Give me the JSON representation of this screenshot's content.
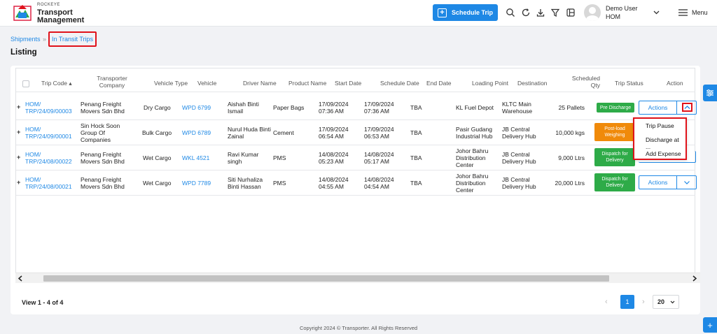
{
  "app": {
    "brand_small": "ROCKEYE",
    "brand_line1": "Transport",
    "brand_line2": "Management"
  },
  "header": {
    "schedule_trip": "Schedule Trip",
    "user_name": "Demo User",
    "user_role": "HOM",
    "menu_label": "Menu",
    "icons": [
      "search-icon",
      "refresh-icon",
      "download-icon",
      "filter-icon",
      "layout-icon"
    ]
  },
  "breadcrumb": {
    "item1": "Shipments",
    "separator": "»",
    "item2": "In Transit Trips"
  },
  "page": {
    "title": "Listing"
  },
  "table": {
    "headers": {
      "trip_code": "Trip Code",
      "transporter1": "Transporter",
      "transporter2": "Company",
      "vehicle_type": "Vehicle Type",
      "vehicle": "Vehicle",
      "driver": "Driver Name",
      "product": "Product Name",
      "start_date": "Start Date",
      "schedule_date": "Schedule Date",
      "end_date": "End Date",
      "loading_point": "Loading Point",
      "destination": "Destination",
      "qty1": "Scheduled",
      "qty2": "Qty",
      "trip_status": "Trip Status",
      "action": "Action"
    },
    "rows": [
      {
        "code1": "HOM/",
        "code2": "TRP/24/09/00003",
        "company1": "Penang Freight",
        "company2": "Movers Sdn Bhd",
        "company3": "",
        "vehicle_type": "Dry Cargo",
        "vehicle": "WPD 6799",
        "driver1": "Aishah Binti",
        "driver2": "Ismail",
        "product": "Paper Bags",
        "start1": "17/09/2024",
        "start2": "07:36 AM",
        "sched1": "17/09/2024",
        "sched2": "07:36 AM",
        "end": "TBA",
        "load1": "KL Fuel Depot",
        "load2": "",
        "load3": "",
        "dest1": "KLTC Main",
        "dest2": "Warehouse",
        "qty": "25 Pallets",
        "status": "Pre Discharge",
        "status2": "",
        "action": "Actions"
      },
      {
        "code1": "HOM/",
        "code2": "TRP/24/09/00001",
        "company1": "Sin Hock Soon",
        "company2": "Group Of",
        "company3": "Companies",
        "vehicle_type": "Bulk Cargo",
        "vehicle": "WPD 6789",
        "driver1": "Nurul Huda Binti",
        "driver2": "Zainal",
        "product": "Cement",
        "start1": "17/09/2024",
        "start2": "06:54 AM",
        "sched1": "17/09/2024",
        "sched2": "06:53 AM",
        "end": "TBA",
        "load1": "Pasir Gudang",
        "load2": "Industrial Hub",
        "load3": "",
        "dest1": "JB Central",
        "dest2": "Delivery Hub",
        "qty": "10,000 kgs",
        "status": "Post-load",
        "status2": "Weighing",
        "action": "Actions"
      },
      {
        "code1": "HOM/",
        "code2": "TRP/24/08/00022",
        "company1": "Penang Freight",
        "company2": "Movers Sdn Bhd",
        "company3": "",
        "vehicle_type": "Wet Cargo",
        "vehicle": "WKL 4521",
        "driver1": "Ravi Kumar",
        "driver2": "singh",
        "product": "PMS",
        "start1": "14/08/2024",
        "start2": "05:23 AM",
        "sched1": "14/08/2024",
        "sched2": "05:17 AM",
        "end": "TBA",
        "load1": "Johor Bahru",
        "load2": "Distribution",
        "load3": "Center",
        "dest1": "JB Central",
        "dest2": "Delivery Hub",
        "qty": "9,000 Ltrs",
        "status": "Dispatch for",
        "status2": "Delivery",
        "action": "Actions"
      },
      {
        "code1": "HOM/",
        "code2": "TRP/24/08/00021",
        "company1": "Penang Freight",
        "company2": "Movers Sdn Bhd",
        "company3": "",
        "vehicle_type": "Wet Cargo",
        "vehicle": "WPD 7789",
        "driver1": "Siti Nurhaliza",
        "driver2": "Binti Hassan",
        "product": "PMS",
        "start1": "14/08/2024",
        "start2": "04:55 AM",
        "sched1": "14/08/2024",
        "sched2": "04:54 AM",
        "end": "TBA",
        "load1": "Johor Bahru",
        "load2": "Distribution",
        "load3": "Center",
        "dest1": "JB Central",
        "dest2": "Delivery Hub",
        "qty": "20,000 Ltrs",
        "status": "Dispatch for",
        "status2": "Delivery",
        "action": "Actions"
      }
    ]
  },
  "dropdown": {
    "items": [
      "Trip Pause",
      "Discharge at ...",
      "Add Expense"
    ]
  },
  "pagination": {
    "view": "View 1 - 4 of 4",
    "prev": "‹",
    "page": "1",
    "next": "›",
    "page_size": "20"
  },
  "footer": {
    "text": "Copyright 2024 © Transporter. All Rights Reserved"
  },
  "colors": {
    "accent": "#1e88e5",
    "status_green": "#2eab48",
    "status_orange": "#f08a0a",
    "highlight_red": "#e0121a"
  }
}
